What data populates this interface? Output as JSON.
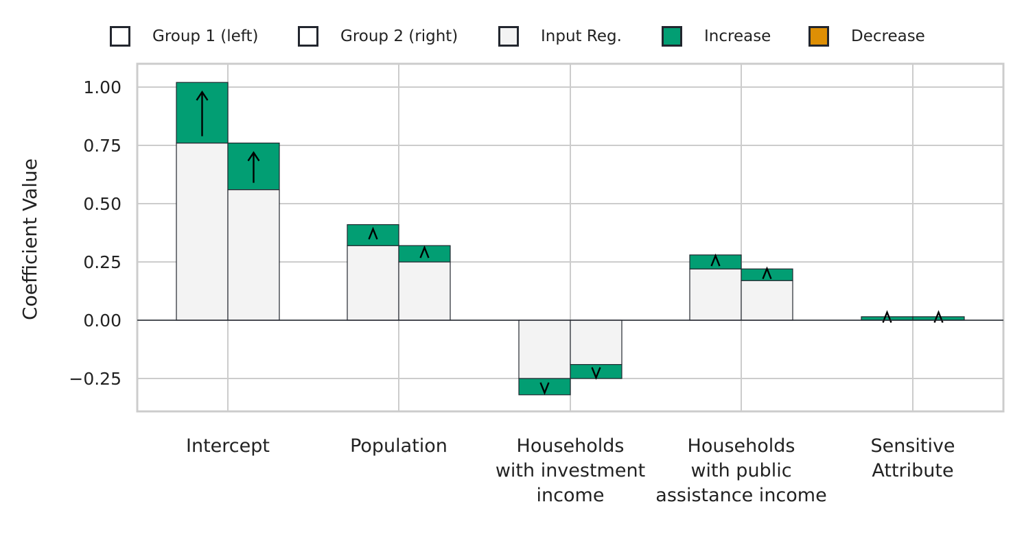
{
  "chart_data": {
    "type": "bar",
    "title": "",
    "xlabel": "",
    "ylabel": "Coefficient Value",
    "ylim": [
      -0.39,
      1.09
    ],
    "yticks": [
      1.0,
      0.75,
      0.5,
      0.25,
      0.0,
      -0.25
    ],
    "ytick_labels": [
      "1.00",
      "0.75",
      "0.50",
      "0.25",
      "0.00",
      "−0.25"
    ],
    "grid": true,
    "legend_position": "top",
    "legend": [
      {
        "label": "Group 1 (left)",
        "fill": "#ffffff",
        "edge": "#22262e"
      },
      {
        "label": "Group 2 (right)",
        "fill": "#ffffff",
        "edge": "#22262e"
      },
      {
        "label": "Input Reg.",
        "fill": "#f3f3f3",
        "edge": "#22262e"
      },
      {
        "label": "Increase",
        "fill": "#029e73",
        "edge": "#22262e"
      },
      {
        "label": "Decrease",
        "fill": "#de8f05",
        "edge": "#22262e"
      }
    ],
    "categories": [
      [
        "Intercept"
      ],
      [
        "Population"
      ],
      [
        "Households",
        "with investment",
        "income"
      ],
      [
        "Households",
        "with public",
        "assistance income"
      ],
      [
        "Sensitive",
        "Attribute"
      ]
    ],
    "series": [
      {
        "name": "Group 1 (left)",
        "input_reg": [
          0.76,
          0.32,
          -0.25,
          0.22,
          0.0
        ],
        "final": [
          1.02,
          0.41,
          -0.32,
          0.28,
          0.015
        ]
      },
      {
        "name": "Group 2 (right)",
        "input_reg": [
          0.56,
          0.25,
          -0.19,
          0.17,
          0.0
        ],
        "final": [
          0.76,
          0.32,
          -0.25,
          0.22,
          0.015
        ]
      }
    ],
    "colors": {
      "input_reg": "#f3f3f3",
      "increase": "#029e73",
      "decrease": "#de8f05",
      "edge": "#22262e",
      "grid": "#cccccc",
      "arrow": "#000000"
    }
  }
}
